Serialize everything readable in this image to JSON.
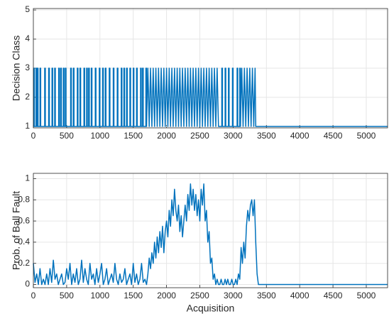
{
  "chart_data": [
    {
      "type": "line",
      "ylabel": "Decision Class",
      "xlim": [
        0,
        5320
      ],
      "ylim": [
        0.95,
        5.05
      ],
      "xticks": [
        0,
        500,
        1000,
        1500,
        2000,
        2500,
        3000,
        3500,
        4000,
        4500,
        5000
      ],
      "yticks": [
        1,
        2,
        3,
        4,
        5
      ],
      "grid": true,
      "x": [
        0,
        5,
        5,
        15,
        15,
        40,
        40,
        50,
        50,
        60,
        60,
        70,
        70,
        100,
        100,
        110,
        110,
        170,
        170,
        180,
        180,
        230,
        230,
        240,
        240,
        280,
        280,
        290,
        290,
        320,
        320,
        330,
        330,
        380,
        380,
        390,
        390,
        410,
        410,
        420,
        420,
        450,
        450,
        460,
        460,
        480,
        480,
        490,
        490,
        560,
        560,
        570,
        570,
        600,
        600,
        610,
        610,
        660,
        660,
        670,
        670,
        700,
        700,
        710,
        710,
        760,
        760,
        770,
        770,
        800,
        800,
        810,
        810,
        830,
        830,
        840,
        840,
        870,
        870,
        880,
        880,
        930,
        930,
        940,
        940,
        990,
        990,
        1000,
        1000,
        1040,
        1040,
        1050,
        1050,
        1080,
        1080,
        1090,
        1090,
        1140,
        1140,
        1150,
        1150,
        1200,
        1200,
        1210,
        1210,
        1260,
        1260,
        1270,
        1270,
        1320,
        1320,
        1330,
        1330,
        1360,
        1360,
        1370,
        1370,
        1400,
        1400,
        1410,
        1410,
        1450,
        1450,
        1460,
        1460,
        1500,
        1500,
        1510,
        1510,
        1550,
        1550,
        1560,
        1560,
        1610,
        1610,
        1620,
        1620,
        1640,
        1640,
        1650,
        1650,
        1690,
        1690,
        1700,
        1700,
        1720,
        1740,
        1760,
        1780,
        1800,
        1820,
        1840,
        1860,
        1880,
        1900,
        1920,
        1940,
        1960,
        1980,
        2000,
        2020,
        2040,
        2060,
        2080,
        2100,
        2120,
        2140,
        2160,
        2180,
        2200,
        2220,
        2240,
        2260,
        2280,
        2300,
        2320,
        2340,
        2360,
        2380,
        2400,
        2420,
        2440,
        2460,
        2480,
        2500,
        2520,
        2540,
        2560,
        2580,
        2600,
        2620,
        2640,
        2660,
        2680,
        2700,
        2720,
        2740,
        2760,
        2780,
        2830,
        2830,
        2840,
        2840,
        2880,
        2880,
        2890,
        2890,
        2930,
        2930,
        2940,
        2940,
        2990,
        2990,
        3000,
        3000,
        3060,
        3060,
        3070,
        3070,
        3100,
        3100,
        3110,
        3110,
        3130,
        3150,
        3170,
        3190,
        3210,
        3230,
        3250,
        3270,
        3290,
        3310,
        3330,
        3340,
        5320
      ],
      "series": [
        {
          "color": "#0072bd",
          "values": [
            1,
            1,
            3,
            3,
            1,
            1,
            3,
            3,
            1,
            1,
            3,
            3,
            1,
            1,
            3,
            3,
            1,
            1,
            3,
            3,
            1,
            1,
            3,
            3,
            1,
            1,
            3,
            3,
            1,
            1,
            3,
            3,
            1,
            1,
            3,
            3,
            1,
            1,
            3,
            3,
            1,
            1,
            3,
            3,
            1,
            1,
            3,
            3,
            1,
            1,
            3,
            3,
            1,
            1,
            3,
            3,
            1,
            1,
            3,
            3,
            1,
            1,
            3,
            3,
            1,
            1,
            3,
            3,
            1,
            1,
            3,
            3,
            1,
            1,
            3,
            3,
            1,
            1,
            3,
            3,
            1,
            1,
            3,
            3,
            1,
            1,
            3,
            3,
            1,
            1,
            3,
            3,
            1,
            1,
            3,
            3,
            1,
            1,
            3,
            3,
            1,
            1,
            3,
            3,
            1,
            1,
            3,
            3,
            1,
            1,
            3,
            3,
            1,
            1,
            3,
            3,
            1,
            1,
            3,
            3,
            1,
            1,
            3,
            3,
            1,
            1,
            3,
            3,
            1,
            1,
            3,
            3,
            1,
            1,
            3,
            3,
            1,
            1,
            3,
            3,
            1,
            1,
            3,
            3,
            1,
            3,
            1,
            3,
            1,
            3,
            1,
            3,
            1,
            3,
            1,
            3,
            1,
            3,
            1,
            3,
            1,
            3,
            1,
            3,
            1,
            3,
            1,
            3,
            1,
            3,
            1,
            3,
            1,
            3,
            1,
            3,
            1,
            3,
            1,
            3,
            1,
            3,
            1,
            3,
            1,
            3,
            1,
            3,
            1,
            3,
            1,
            3,
            1,
            3,
            1,
            3,
            1,
            3,
            1,
            1,
            3,
            3,
            1,
            1,
            3,
            3,
            1,
            1,
            3,
            3,
            1,
            1,
            3,
            3,
            1,
            1,
            3,
            3,
            1,
            1,
            3,
            3,
            1,
            3,
            1,
            3,
            1,
            3,
            1,
            3,
            1,
            3,
            1,
            3,
            1,
            1
          ]
        }
      ]
    },
    {
      "type": "line",
      "xlabel": "Acquisition",
      "ylabel": "Prob. of Ball Fault",
      "xlim": [
        0,
        5320
      ],
      "ylim": [
        -0.03,
        1.05
      ],
      "xticks": [
        0,
        500,
        1000,
        1500,
        2000,
        2500,
        3000,
        3500,
        4000,
        4500,
        5000
      ],
      "yticks": [
        0,
        0.2,
        0.4,
        0.6,
        0.8,
        1
      ],
      "grid": true,
      "x": [
        0,
        25,
        50,
        75,
        100,
        125,
        150,
        175,
        200,
        225,
        250,
        275,
        300,
        325,
        350,
        375,
        400,
        425,
        450,
        475,
        500,
        525,
        550,
        575,
        600,
        625,
        650,
        675,
        700,
        725,
        750,
        775,
        800,
        825,
        850,
        875,
        900,
        925,
        950,
        975,
        1000,
        1025,
        1050,
        1075,
        1100,
        1125,
        1150,
        1175,
        1200,
        1225,
        1250,
        1275,
        1300,
        1325,
        1350,
        1375,
        1400,
        1425,
        1450,
        1475,
        1500,
        1525,
        1550,
        1575,
        1600,
        1625,
        1650,
        1675,
        1700,
        1720,
        1740,
        1760,
        1780,
        1800,
        1820,
        1840,
        1860,
        1880,
        1900,
        1920,
        1940,
        1960,
        1980,
        2000,
        2020,
        2040,
        2060,
        2080,
        2100,
        2120,
        2140,
        2160,
        2180,
        2200,
        2220,
        2240,
        2260,
        2280,
        2300,
        2320,
        2340,
        2360,
        2380,
        2400,
        2420,
        2440,
        2460,
        2480,
        2500,
        2520,
        2540,
        2560,
        2580,
        2600,
        2620,
        2640,
        2660,
        2680,
        2700,
        2720,
        2740,
        2760,
        2780,
        2800,
        2820,
        2840,
        2860,
        2880,
        2900,
        2920,
        2940,
        2960,
        2980,
        3000,
        3020,
        3040,
        3060,
        3080,
        3100,
        3120,
        3140,
        3160,
        3180,
        3200,
        3220,
        3240,
        3260,
        3280,
        3300,
        3320,
        3340,
        3360,
        3380,
        5320
      ],
      "series": [
        {
          "color": "#0072bd",
          "values": [
            0.2,
            0.02,
            0.1,
            0,
            0.15,
            0,
            0.05,
            0,
            0.1,
            0,
            0.15,
            0.02,
            0.23,
            0.05,
            0.1,
            0,
            0.05,
            0.1,
            0,
            0.02,
            0.15,
            0.05,
            0.2,
            0,
            0.1,
            0.02,
            0.15,
            0,
            0.05,
            0.23,
            0.02,
            0.15,
            0.05,
            0,
            0.2,
            0.05,
            0.1,
            0,
            0.15,
            0.02,
            0.1,
            0.2,
            0,
            0.05,
            0.15,
            0,
            0.05,
            0.1,
            0.02,
            0.2,
            0.05,
            0,
            0.1,
            0.02,
            0.05,
            0.15,
            0,
            0.05,
            0.1,
            0,
            0.2,
            0.02,
            0.1,
            0,
            0.05,
            0.2,
            0.02,
            0.05,
            0,
            0.1,
            0.25,
            0.15,
            0.3,
            0.2,
            0.4,
            0.25,
            0.45,
            0.3,
            0.5,
            0.35,
            0.55,
            0.3,
            0.5,
            0.6,
            0.45,
            0.7,
            0.55,
            0.8,
            0.65,
            0.9,
            0.7,
            0.6,
            0.75,
            0.5,
            0.65,
            0.45,
            0.6,
            0.75,
            0.6,
            0.85,
            0.7,
            0.95,
            0.75,
            0.9,
            0.7,
            0.85,
            0.65,
            0.8,
            0.6,
            0.9,
            0.75,
            0.95,
            0.6,
            0.7,
            0.4,
            0.5,
            0.2,
            0.25,
            0.05,
            0.1,
            0,
            0.05,
            0,
            0,
            0.05,
            0,
            0,
            0.05,
            0,
            0.05,
            0,
            0,
            0.05,
            0,
            0,
            0.05,
            0,
            0.1,
            0.05,
            0.35,
            0.2,
            0.4,
            0.25,
            0.55,
            0.7,
            0.6,
            0.75,
            0.8,
            0.65,
            0.8,
            0.4,
            0.1,
            0,
            0
          ]
        }
      ]
    }
  ]
}
